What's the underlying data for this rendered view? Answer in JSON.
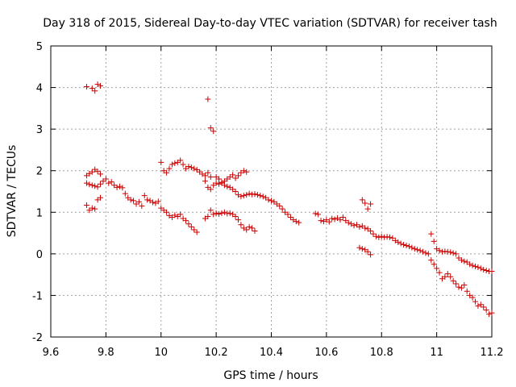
{
  "chart_data": {
    "type": "scatter",
    "title": "Day 318 of 2015, Sidereal Day-to-day VTEC variation (SDTVAR) for receiver tash",
    "xlabel": "GPS time / hours",
    "ylabel": "SDTVAR / TECUs",
    "xlim": [
      9.6,
      11.2
    ],
    "ylim": [
      -2,
      5
    ],
    "xticks": [
      9.6,
      9.8,
      10,
      10.2,
      10.4,
      10.6,
      10.8,
      11,
      11.2
    ],
    "xtick_labels": [
      "9.6",
      "9.8",
      "10",
      "10.2",
      "10.4",
      "10.6",
      "10.8",
      "11",
      "11.2"
    ],
    "yticks": [
      -2,
      -1,
      0,
      1,
      2,
      3,
      4,
      5
    ],
    "ytick_labels": [
      "-2",
      "-1",
      "0",
      "1",
      "2",
      "3",
      "4",
      "5"
    ],
    "grid": true,
    "marker": "plus",
    "marker_color": "#cc0000",
    "series": [
      {
        "name": "sdtvar",
        "points": [
          [
            9.73,
            4.02
          ],
          [
            9.75,
            3.98
          ],
          [
            9.76,
            3.92
          ],
          [
            9.77,
            4.08
          ],
          [
            9.78,
            4.04
          ],
          [
            9.73,
            1.88
          ],
          [
            9.74,
            1.93
          ],
          [
            9.75,
            1.97
          ],
          [
            9.76,
            2.03
          ],
          [
            9.77,
            1.98
          ],
          [
            9.78,
            1.92
          ],
          [
            9.73,
            1.7
          ],
          [
            9.74,
            1.67
          ],
          [
            9.75,
            1.65
          ],
          [
            9.76,
            1.63
          ],
          [
            9.77,
            1.61
          ],
          [
            9.78,
            1.68
          ],
          [
            9.79,
            1.75
          ],
          [
            9.8,
            1.8
          ],
          [
            9.81,
            1.7
          ],
          [
            9.82,
            1.73
          ],
          [
            9.83,
            1.65
          ],
          [
            9.84,
            1.6
          ],
          [
            9.85,
            1.62
          ],
          [
            9.86,
            1.59
          ],
          [
            9.73,
            1.17
          ],
          [
            9.74,
            1.05
          ],
          [
            9.75,
            1.1
          ],
          [
            9.76,
            1.08
          ],
          [
            9.77,
            1.3
          ],
          [
            9.78,
            1.35
          ],
          [
            9.87,
            1.45
          ],
          [
            9.88,
            1.35
          ],
          [
            9.89,
            1.3
          ],
          [
            9.9,
            1.28
          ],
          [
            9.91,
            1.2
          ],
          [
            9.92,
            1.25
          ],
          [
            9.93,
            1.15
          ],
          [
            9.94,
            1.4
          ],
          [
            9.95,
            1.3
          ],
          [
            9.96,
            1.28
          ],
          [
            9.97,
            1.24
          ],
          [
            9.98,
            1.22
          ],
          [
            9.99,
            1.26
          ],
          [
            10.0,
            1.1
          ],
          [
            10.01,
            1.05
          ],
          [
            10.02,
            1.0
          ],
          [
            10.03,
            0.92
          ],
          [
            10.04,
            0.88
          ],
          [
            10.05,
            0.93
          ],
          [
            10.06,
            0.9
          ],
          [
            10.07,
            0.95
          ],
          [
            10.08,
            0.85
          ],
          [
            10.09,
            0.8
          ],
          [
            10.1,
            0.72
          ],
          [
            10.11,
            0.65
          ],
          [
            10.12,
            0.58
          ],
          [
            10.13,
            0.52
          ],
          [
            10.0,
            2.2
          ],
          [
            10.01,
            2.0
          ],
          [
            10.02,
            1.95
          ],
          [
            10.03,
            2.05
          ],
          [
            10.04,
            2.15
          ],
          [
            10.05,
            2.18
          ],
          [
            10.06,
            2.2
          ],
          [
            10.07,
            2.25
          ],
          [
            10.08,
            2.15
          ],
          [
            10.09,
            2.05
          ],
          [
            10.1,
            2.1
          ],
          [
            10.11,
            2.08
          ],
          [
            10.12,
            2.05
          ],
          [
            10.13,
            2.02
          ],
          [
            10.14,
            1.97
          ],
          [
            10.15,
            1.92
          ],
          [
            10.16,
            1.88
          ],
          [
            10.17,
            1.95
          ],
          [
            10.18,
            1.85
          ],
          [
            10.17,
            3.72
          ],
          [
            10.18,
            3.03
          ],
          [
            10.19,
            2.95
          ],
          [
            10.16,
            1.75
          ],
          [
            10.17,
            1.6
          ],
          [
            10.18,
            1.55
          ],
          [
            10.19,
            1.65
          ],
          [
            10.2,
            1.7
          ],
          [
            10.21,
            1.68
          ],
          [
            10.22,
            1.72
          ],
          [
            10.23,
            1.65
          ],
          [
            10.24,
            1.62
          ],
          [
            10.25,
            1.6
          ],
          [
            10.26,
            1.55
          ],
          [
            10.27,
            1.5
          ],
          [
            10.28,
            1.42
          ],
          [
            10.29,
            1.38
          ],
          [
            10.3,
            1.4
          ],
          [
            10.31,
            1.42
          ],
          [
            10.32,
            1.45
          ],
          [
            10.33,
            1.43
          ],
          [
            10.34,
            1.44
          ],
          [
            10.35,
            1.42
          ],
          [
            10.36,
            1.4
          ],
          [
            10.37,
            1.38
          ],
          [
            10.38,
            1.35
          ],
          [
            10.39,
            1.3
          ],
          [
            10.4,
            1.28
          ],
          [
            10.41,
            1.25
          ],
          [
            10.42,
            1.2
          ],
          [
            10.43,
            1.15
          ],
          [
            10.44,
            1.08
          ],
          [
            10.45,
            1.0
          ],
          [
            10.46,
            0.95
          ],
          [
            10.47,
            0.88
          ],
          [
            10.48,
            0.82
          ],
          [
            10.49,
            0.78
          ],
          [
            10.5,
            0.75
          ],
          [
            10.2,
            1.85
          ],
          [
            10.21,
            1.8
          ],
          [
            10.22,
            1.7
          ],
          [
            10.23,
            1.75
          ],
          [
            10.24,
            1.8
          ],
          [
            10.25,
            1.85
          ],
          [
            10.26,
            1.9
          ],
          [
            10.27,
            1.82
          ],
          [
            10.28,
            1.88
          ],
          [
            10.29,
            1.95
          ],
          [
            10.3,
            2.0
          ],
          [
            10.31,
            1.97
          ],
          [
            10.16,
            0.85
          ],
          [
            10.17,
            0.9
          ],
          [
            10.18,
            1.05
          ],
          [
            10.19,
            0.95
          ],
          [
            10.2,
            0.98
          ],
          [
            10.21,
            0.96
          ],
          [
            10.22,
            0.98
          ],
          [
            10.23,
            1.0
          ],
          [
            10.24,
            0.97
          ],
          [
            10.25,
            0.98
          ],
          [
            10.26,
            0.95
          ],
          [
            10.27,
            0.9
          ],
          [
            10.28,
            0.82
          ],
          [
            10.29,
            0.7
          ],
          [
            10.3,
            0.62
          ],
          [
            10.31,
            0.58
          ],
          [
            10.32,
            0.65
          ],
          [
            10.33,
            0.62
          ],
          [
            10.34,
            0.55
          ],
          [
            10.56,
            0.97
          ],
          [
            10.57,
            0.95
          ],
          [
            10.58,
            0.8
          ],
          [
            10.59,
            0.78
          ],
          [
            10.6,
            0.82
          ],
          [
            10.61,
            0.77
          ],
          [
            10.62,
            0.85
          ],
          [
            10.63,
            0.83
          ],
          [
            10.64,
            0.86
          ],
          [
            10.65,
            0.82
          ],
          [
            10.66,
            0.88
          ],
          [
            10.67,
            0.8
          ],
          [
            10.68,
            0.75
          ],
          [
            10.69,
            0.72
          ],
          [
            10.7,
            0.68
          ],
          [
            10.71,
            0.7
          ],
          [
            10.72,
            0.65
          ],
          [
            10.73,
            0.67
          ],
          [
            10.74,
            0.62
          ],
          [
            10.75,
            0.6
          ],
          [
            10.76,
            0.55
          ],
          [
            10.77,
            0.48
          ],
          [
            10.78,
            0.42
          ],
          [
            10.79,
            0.4
          ],
          [
            10.8,
            0.42
          ],
          [
            10.81,
            0.4
          ],
          [
            10.82,
            0.41
          ],
          [
            10.83,
            0.4
          ],
          [
            10.84,
            0.38
          ],
          [
            10.85,
            0.32
          ],
          [
            10.86,
            0.28
          ],
          [
            10.87,
            0.25
          ],
          [
            10.88,
            0.22
          ],
          [
            10.89,
            0.2
          ],
          [
            10.9,
            0.18
          ],
          [
            10.91,
            0.15
          ],
          [
            10.92,
            0.12
          ],
          [
            10.93,
            0.1
          ],
          [
            10.94,
            0.08
          ],
          [
            10.95,
            0.05
          ],
          [
            10.96,
            0.02
          ],
          [
            10.97,
            0.0
          ],
          [
            10.73,
            1.3
          ],
          [
            10.74,
            1.22
          ],
          [
            10.75,
            1.08
          ],
          [
            10.76,
            1.2
          ],
          [
            10.72,
            0.15
          ],
          [
            10.73,
            0.12
          ],
          [
            10.74,
            0.1
          ],
          [
            10.75,
            0.05
          ],
          [
            10.76,
            -0.02
          ],
          [
            10.98,
            0.48
          ],
          [
            10.99,
            0.3
          ],
          [
            11.0,
            0.12
          ],
          [
            11.01,
            0.08
          ],
          [
            11.02,
            0.05
          ],
          [
            11.03,
            0.06
          ],
          [
            11.04,
            0.05
          ],
          [
            11.05,
            0.04
          ],
          [
            11.06,
            0.02
          ],
          [
            11.07,
            0.0
          ],
          [
            11.08,
            -0.1
          ],
          [
            11.09,
            -0.15
          ],
          [
            11.1,
            -0.18
          ],
          [
            11.11,
            -0.2
          ],
          [
            11.12,
            -0.25
          ],
          [
            11.13,
            -0.28
          ],
          [
            11.14,
            -0.3
          ],
          [
            11.15,
            -0.32
          ],
          [
            11.16,
            -0.35
          ],
          [
            11.17,
            -0.38
          ],
          [
            11.18,
            -0.4
          ],
          [
            11.19,
            -0.42
          ],
          [
            11.2,
            -0.42
          ],
          [
            10.98,
            -0.15
          ],
          [
            10.99,
            -0.25
          ],
          [
            11.0,
            -0.35
          ],
          [
            11.01,
            -0.45
          ],
          [
            11.02,
            -0.6
          ],
          [
            11.03,
            -0.55
          ],
          [
            11.04,
            -0.48
          ],
          [
            11.05,
            -0.55
          ],
          [
            11.06,
            -0.65
          ],
          [
            11.07,
            -0.72
          ],
          [
            11.08,
            -0.8
          ],
          [
            11.09,
            -0.82
          ],
          [
            11.1,
            -0.75
          ],
          [
            11.11,
            -0.9
          ],
          [
            11.12,
            -1.0
          ],
          [
            11.13,
            -1.05
          ],
          [
            11.14,
            -1.15
          ],
          [
            11.15,
            -1.25
          ],
          [
            11.16,
            -1.22
          ],
          [
            11.17,
            -1.28
          ],
          [
            11.18,
            -1.35
          ],
          [
            11.19,
            -1.45
          ],
          [
            11.2,
            -1.42
          ]
        ]
      }
    ]
  }
}
